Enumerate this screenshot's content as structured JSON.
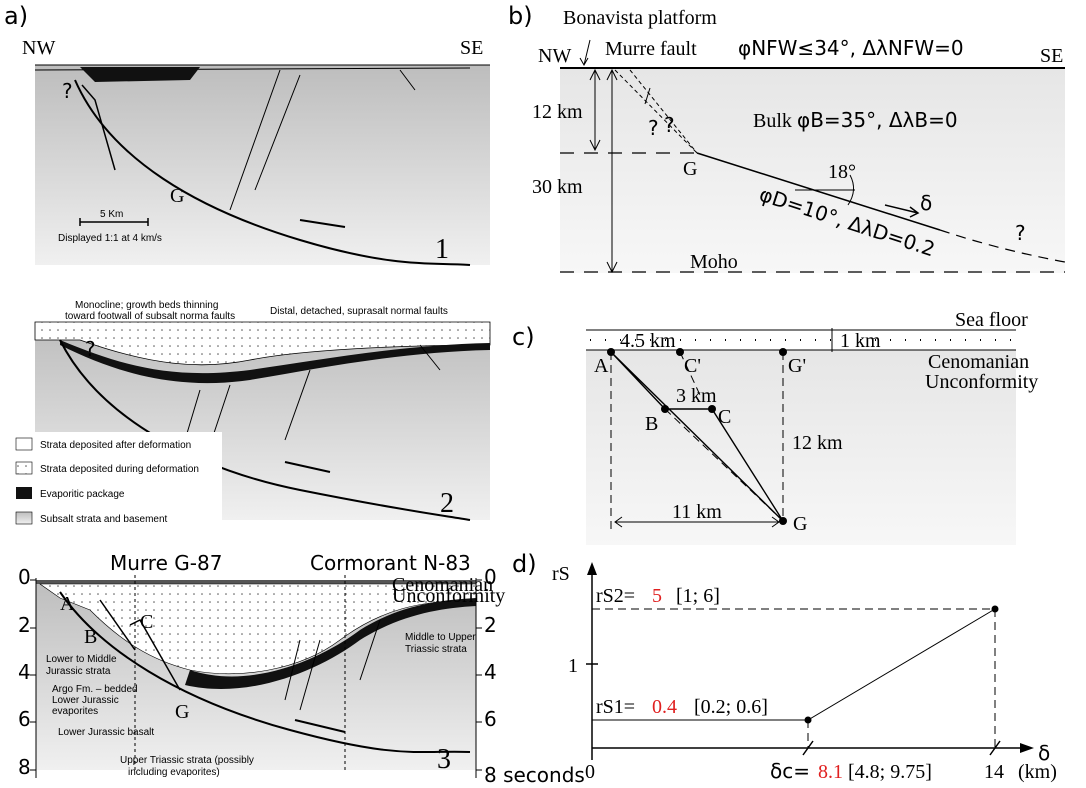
{
  "panel_a": {
    "label": "a)",
    "section1": {
      "nw": "NW",
      "se": "SE",
      "question": "?",
      "g": "G",
      "scale": "5 Km",
      "display": "Displayed 1:1 at 4 km/s",
      "number": "1"
    },
    "section2": {
      "monocline_1": "Monocline; growth beds thinning",
      "monocline_2": "toward footwall of subsalt norma faults",
      "distal": "Distal, detached, suprasalt normal faults",
      "question": "?",
      "number": "2",
      "legend": [
        "Strata deposited after deformation",
        "Strata deposited during deformation",
        "Evaporitic package",
        "Subsalt strata and basement"
      ]
    },
    "section3": {
      "murre": "Murre G-87",
      "cormorant": "Cormorant N-83",
      "cenomanian": "Cenomanian",
      "unconformity": "Unconformity",
      "a": "A",
      "b": "B",
      "c": "C",
      "g": "G",
      "lower_middle_1": "Lower to Middle",
      "lower_middle_2": "Jurassic strata",
      "argo_1": "Argo Fm. – bedded",
      "argo_2": "Lower Jurassic",
      "argo_3": "evaporites",
      "basalt": "Lower Jurassic basalt",
      "upper_triassic_1": "Upper Triassic strata (possibly",
      "upper_triassic_2": "including evaporites)",
      "middle_upper_1": "Middle to Upper",
      "middle_upper_2": "Triassic strata",
      "number": "3",
      "left_ticks": [
        "0",
        "2",
        "4",
        "6",
        "8"
      ],
      "right_ticks": [
        "0",
        "2",
        "4",
        "6",
        "8 seconds"
      ]
    }
  },
  "panel_b": {
    "label": "b)",
    "bonavista": "Bonavista platform",
    "nw": "NW",
    "se": "SE",
    "murre": "Murre fault",
    "murre_params": "φNFW≤34°, ΔλNFW=0",
    "q1": "?",
    "q2": "?",
    "q3": "?",
    "depth_12": "12 km",
    "depth_30": "30 km",
    "bulk": "Bulk",
    "bulk_params": "φB=35°, ΔλB=0",
    "g": "G",
    "angle": "18°",
    "delta": "δ",
    "detachment_params": "φD=10°, ΔλD=0.2",
    "moho": "Moho"
  },
  "panel_c": {
    "label": "c)",
    "top_width": "4.5 km",
    "water": "1 km",
    "sea_floor": "Sea floor",
    "cenomanian": "Cenomanian",
    "unconformity": "Unconformity",
    "a": "A",
    "c_prime": "C'",
    "g_prime": "G'",
    "bc": "3 km",
    "b": "B",
    "c": "C",
    "depth": "12 km",
    "width": "11 km",
    "g": "G"
  },
  "panel_d": {
    "label": "d)",
    "y_label": "rS",
    "rs2": "rS2=",
    "rs2_value": "5",
    "rs2_range": "[1; 6]",
    "y_tick": "1",
    "rs1": "rS1=",
    "rs1_value": "0.4",
    "rs1_range": "[0.2; 0.6]",
    "x_tick_0": "0",
    "delta_c": "δc=",
    "delta_c_value": "8.1",
    "delta_c_range": "[4.8; 9.75]",
    "x_tick_14": "14",
    "unit": "(km)",
    "x_label": "δ"
  }
}
